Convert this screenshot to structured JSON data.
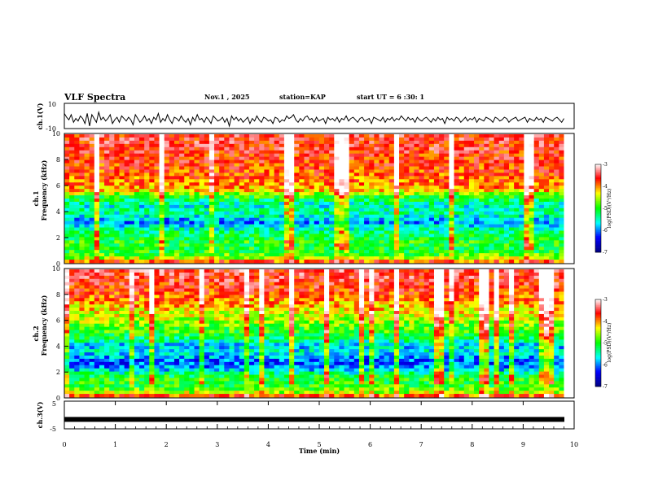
{
  "header": {
    "title": "VLF Spectra",
    "date": "Nov.1 , 2025",
    "station": "station=KAP",
    "start_ut": "start UT = 6 :30: 1"
  },
  "chart_data": [
    {
      "type": "line",
      "panel": "ch1-waveform",
      "ylabel": "ch.1(V)",
      "ylim": [
        -10,
        10
      ],
      "y_ticks": [
        "10",
        "-10"
      ],
      "x_range_min": [
        0,
        9.8
      ],
      "series": [
        {
          "values": [
            2,
            -1,
            -3,
            1,
            -5,
            -2,
            -4,
            0,
            -2,
            -6,
            2,
            -8,
            1,
            -2,
            -5,
            3,
            -3,
            -1,
            -4,
            -2,
            1,
            -6,
            -3,
            -1,
            -5,
            0,
            -2,
            -4,
            -1,
            -3,
            -7,
            1,
            -2,
            -5,
            -3,
            0,
            -4,
            -2,
            -6,
            -1,
            -3,
            2,
            -5,
            -2,
            -4,
            1,
            -3,
            -6,
            -1,
            -2,
            -4,
            0,
            -3,
            -5,
            -2,
            -7,
            -1,
            -4,
            1,
            -3,
            -2,
            -5,
            -1,
            -3,
            -6,
            0,
            -2,
            -4,
            -3,
            -1,
            -5,
            -2,
            -8,
            0,
            -3,
            -1,
            -4,
            -2,
            -5,
            -3,
            -1,
            -6,
            -2,
            -4,
            0,
            -3,
            -5,
            -1,
            -2,
            -4,
            -3,
            -6,
            -1,
            -2,
            -5,
            -3,
            -4,
            0,
            -2,
            -1,
            1,
            -3,
            -5,
            -2,
            -4,
            -1,
            0,
            -3,
            -2,
            -5,
            -1,
            -4,
            -3,
            -2,
            -6,
            -1,
            -3,
            -2,
            -4,
            -1,
            -5,
            -2,
            -3,
            0,
            -4,
            -2,
            -1,
            -3,
            -5,
            -2,
            -1,
            -4,
            -3,
            -2,
            -6,
            -1,
            -2,
            -3,
            -4,
            -1,
            -5,
            -2,
            -3,
            -1,
            -4,
            -2,
            -3,
            0,
            -2,
            -4,
            -1,
            -3,
            -2,
            -5,
            -1,
            -3,
            -4,
            -2,
            -1,
            -3,
            -5,
            -2,
            -4,
            -1,
            -3,
            -2,
            -6,
            -1,
            -3,
            -2,
            -4,
            -1,
            -2,
            -5,
            -3,
            -1,
            -4,
            -2,
            -3,
            -1,
            -5,
            -2,
            -3,
            -4,
            -1,
            -2,
            -3,
            -5,
            -1,
            -2,
            -4,
            -3,
            -1,
            -2,
            -5,
            -3,
            -2,
            -1,
            -4,
            -3,
            -2,
            -1,
            -5,
            -2,
            -3,
            -4,
            -1,
            -3,
            -2,
            -5,
            -1,
            -2,
            -3,
            -4,
            -2,
            -1,
            -3,
            -5,
            -2
          ]
        }
      ]
    },
    {
      "type": "heatmap",
      "panel": "ch1-spectrogram",
      "ylabel": "ch.1 Frequency (kHz)",
      "ylim": [
        0,
        10
      ],
      "y_ticks": [
        "0",
        "2",
        "4",
        "6",
        "8",
        "10"
      ],
      "x_range_min": [
        0,
        9.8
      ],
      "freq_profile_log_psd": {
        "freq_khz": [
          0,
          0.4,
          0.8,
          1.2,
          1.6,
          2.0,
          2.4,
          2.8,
          3.2,
          3.6,
          4.0,
          4.4,
          4.8,
          5.2,
          5.6,
          6.0,
          7.0,
          8.0,
          9.0,
          10.0
        ],
        "log_psd": [
          -3.5,
          -4.6,
          -5.0,
          -5.1,
          -5.0,
          -5.2,
          -5.3,
          -5.6,
          -6.0,
          -5.6,
          -5.4,
          -5.6,
          -5.3,
          -4.9,
          -4.2,
          -4.0,
          -3.8,
          -3.7,
          -3.6,
          -3.6
        ]
      },
      "colorbar": {
        "label": "log(PSD)(V²/Hz)",
        "range": [
          -7,
          -3
        ],
        "ticks": [
          "-3",
          "-4",
          "-5",
          "-6",
          "-7"
        ],
        "colors": [
          "#000080",
          "#0000ff",
          "#00ffff",
          "#00ff00",
          "#ffff00",
          "#ff0000",
          "#ffffff"
        ]
      }
    },
    {
      "type": "heatmap",
      "panel": "ch2-spectrogram",
      "ylabel": "ch.2 Frequency (kHz)",
      "ylim": [
        0,
        10
      ],
      "y_ticks": [
        "0",
        "2",
        "4",
        "6",
        "8",
        "10"
      ],
      "x_range_min": [
        0,
        9.8
      ],
      "freq_profile_log_psd": {
        "freq_khz": [
          0,
          0.4,
          0.8,
          1.2,
          1.6,
          2.0,
          2.4,
          2.8,
          3.2,
          3.6,
          4.0,
          4.4,
          4.8,
          5.2,
          5.6,
          6.0,
          7.0,
          8.0,
          9.0,
          10.0
        ],
        "log_psd": [
          -3.5,
          -4.6,
          -5.0,
          -5.0,
          -5.1,
          -5.6,
          -6.0,
          -6.2,
          -5.8,
          -5.6,
          -5.8,
          -5.4,
          -5.1,
          -4.9,
          -4.8,
          -4.6,
          -4.2,
          -3.8,
          -3.6,
          -3.5
        ]
      },
      "colorbar": {
        "label": "log(PSD)(V²/Hz)",
        "range": [
          -7,
          -3
        ],
        "ticks": [
          "-3",
          "-4",
          "-5",
          "-6",
          "-7"
        ],
        "colors": [
          "#000080",
          "#0000ff",
          "#00ffff",
          "#00ff00",
          "#ffff00",
          "#ff0000",
          "#ffffff"
        ]
      }
    },
    {
      "type": "line",
      "panel": "ch3-waveform",
      "ylabel": "ch.3(V)",
      "ylim": [
        -5,
        5
      ],
      "y_ticks": [
        "5",
        "-5"
      ],
      "x_range_min": [
        0,
        9.8
      ],
      "series": [
        {
          "values": [
            -1.6,
            -1.6
          ]
        }
      ]
    }
  ],
  "x_axis": {
    "label": "Time (min)",
    "ticks": [
      "0",
      "1",
      "2",
      "3",
      "4",
      "5",
      "6",
      "7",
      "8",
      "9",
      "10"
    ],
    "range": [
      0,
      10
    ]
  }
}
